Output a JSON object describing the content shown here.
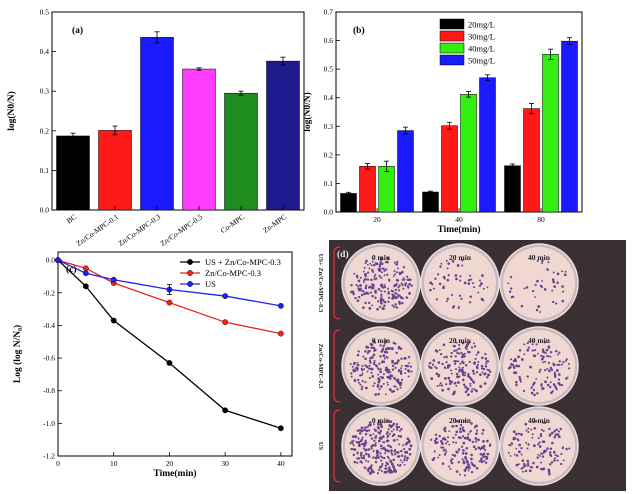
{
  "panel_labels": {
    "a": "(a)",
    "b": "(b)",
    "c": "(c)",
    "d": "(d)"
  },
  "chart_data": [
    {
      "id": "a",
      "type": "bar",
      "title": "",
      "xlabel": "",
      "ylabel": "log(N0/N)",
      "ylim": [
        0.0,
        0.5
      ],
      "yticks": [
        "0.0",
        "0.1",
        "0.2",
        "0.3",
        "0.4",
        "0.5"
      ],
      "categories": [
        "BC",
        "Zn/Co-MPC-0.1",
        "Zn/Co-MPC-0.3",
        "Zn/Co-MPC-0.5",
        "Co-MPC",
        "Zn-MPC"
      ],
      "values": [
        0.187,
        0.201,
        0.436,
        0.356,
        0.295,
        0.376
      ],
      "errors": [
        0.007,
        0.011,
        0.014,
        0.003,
        0.005,
        0.01
      ],
      "colors": [
        "#000000",
        "#ff1a1a",
        "#1a1aff",
        "#ff3dff",
        "#1f8c1f",
        "#1c1a8c"
      ]
    },
    {
      "id": "b",
      "type": "bar",
      "title": "",
      "xlabel": "Time(min)",
      "ylabel": "log(N0/N)",
      "ylim": [
        0.0,
        0.7
      ],
      "yticks": [
        "0.0",
        "0.1",
        "0.2",
        "0.3",
        "0.4",
        "0.5",
        "0.6",
        "0.7"
      ],
      "categories": [
        "20",
        "40",
        "80"
      ],
      "legend_position": "top-left",
      "series": [
        {
          "name": "20mg/L",
          "color": "#000000",
          "values": [
            0.065,
            0.07,
            0.162
          ],
          "errors": [
            0.004,
            0.003,
            0.006
          ]
        },
        {
          "name": "30mg/L",
          "color": "#ff1a1a",
          "values": [
            0.16,
            0.302,
            0.362
          ],
          "errors": [
            0.01,
            0.012,
            0.018
          ]
        },
        {
          "name": "40mg/L",
          "color": "#33ee11",
          "values": [
            0.16,
            0.412,
            0.552
          ],
          "errors": [
            0.018,
            0.01,
            0.018
          ]
        },
        {
          "name": "50mg/L",
          "color": "#1a1aff",
          "values": [
            0.285,
            0.47,
            0.598
          ],
          "errors": [
            0.012,
            0.01,
            0.012
          ]
        }
      ]
    },
    {
      "id": "c",
      "type": "line",
      "title": "",
      "xlabel": "Time(min)",
      "ylabel": "Log (log N/N₀)",
      "xlim": [
        0,
        42
      ],
      "ylim": [
        -1.2,
        0.05
      ],
      "xticks": [
        "0",
        "10",
        "20",
        "30",
        "40"
      ],
      "yticks": [
        "0.0",
        "-0.2",
        "-0.4",
        "-0.6",
        "-0.8",
        "-1.0",
        "-1.2"
      ],
      "x": [
        0,
        5,
        10,
        20,
        30,
        40
      ],
      "legend_position": "top-right",
      "series": [
        {
          "name": "US + Zn/Co-MPC-0.3",
          "color": "#000000",
          "values": [
            0.0,
            -0.16,
            -0.37,
            -0.63,
            -0.92,
            -1.03
          ]
        },
        {
          "name": "Zn/Co-MPC-0.3",
          "color": "#ee2222",
          "values": [
            0.0,
            -0.05,
            -0.14,
            -0.26,
            -0.38,
            -0.45
          ]
        },
        {
          "name": "US",
          "color": "#2222ee",
          "values": [
            0.0,
            -0.08,
            -0.12,
            -0.18,
            -0.22,
            -0.28
          ]
        }
      ]
    }
  ],
  "plates": {
    "rows": [
      "US+ Zn/Co-MPC-0.3",
      "Zn/Co-MPC-0.3",
      "US"
    ],
    "times": [
      "0 min",
      "20 min",
      "40 min"
    ],
    "density": [
      [
        210,
        55,
        40
      ],
      [
        200,
        170,
        120
      ],
      [
        260,
        150,
        120
      ]
    ]
  }
}
